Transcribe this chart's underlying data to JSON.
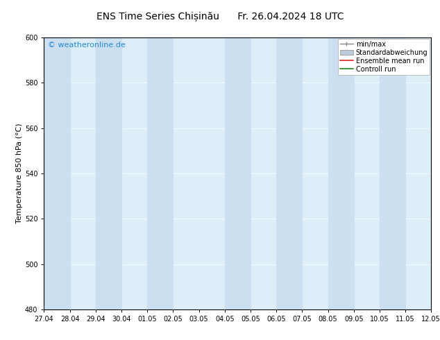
{
  "title": "ENS Time Series Chișinău      Fr. 26.04.2024 18 UTC",
  "ylabel": "Temperature 850 hPa (°C)",
  "ylim": [
    480,
    600
  ],
  "yticks": [
    480,
    500,
    520,
    540,
    560,
    580,
    600
  ],
  "xlim": [
    0,
    15
  ],
  "xtick_positions": [
    0,
    1,
    2,
    3,
    4,
    5,
    6,
    7,
    8,
    9,
    10,
    11,
    12,
    13,
    14,
    15
  ],
  "xtick_labels": [
    "27.04",
    "28.04",
    "29.04",
    "30.04",
    "01.05",
    "02.05",
    "03.05",
    "04.05",
    "05.05",
    "06.05",
    "07.05",
    "08.05",
    "09.05",
    "10.05",
    "11.05",
    "12.05"
  ],
  "band_positions": [
    0,
    2,
    4,
    7,
    9,
    11,
    13
  ],
  "band_color": "#ccdff0",
  "plot_bg_color": "#ddeef8",
  "background_color": "#ffffff",
  "watermark": "© weatheronline.de",
  "watermark_color": "#2288cc",
  "legend_items": [
    {
      "label": "min/max",
      "color": "#999999",
      "type": "errorbar"
    },
    {
      "label": "Standardabweichung",
      "color": "#bbccdd",
      "type": "bar"
    },
    {
      "label": "Ensemble mean run",
      "color": "#dd2222",
      "type": "line"
    },
    {
      "label": "Controll run",
      "color": "#228822",
      "type": "line"
    }
  ],
  "title_fontsize": 10,
  "tick_fontsize": 7,
  "ylabel_fontsize": 8,
  "watermark_fontsize": 8,
  "legend_fontsize": 7
}
